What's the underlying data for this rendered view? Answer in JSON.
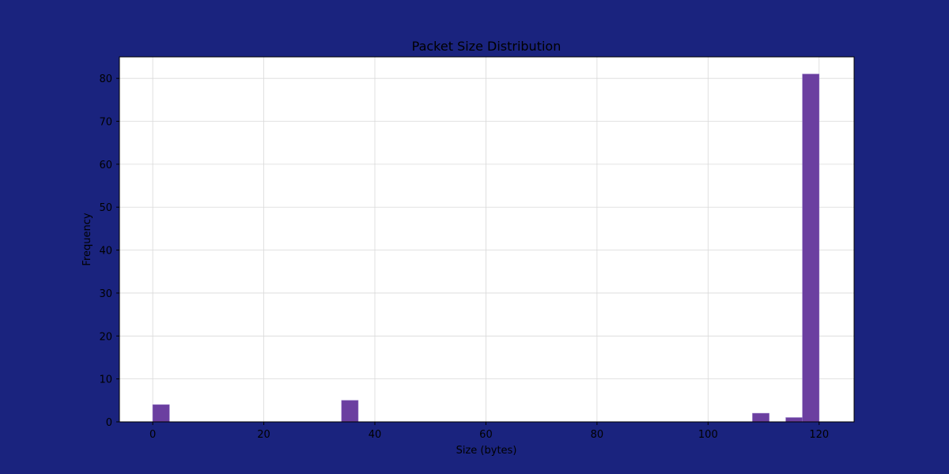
{
  "colors": {
    "figure_background": "#1a237e",
    "plot_background": "#ffffff",
    "bar_fill": "#6b3fa0",
    "bar_edge": "#8a6bbf",
    "grid": "#d9d9d9"
  },
  "chart_data": {
    "type": "bar",
    "title": "Packet Size Distribution",
    "xlabel": "Size (bytes)",
    "ylabel": "Frequency",
    "xlim": [
      -6,
      126.3
    ],
    "ylim": [
      0,
      85
    ],
    "grid": true,
    "xticks": [
      0,
      20,
      40,
      60,
      80,
      100,
      120
    ],
    "yticks": [
      0,
      10,
      20,
      30,
      40,
      50,
      60,
      70,
      80
    ],
    "bin_width": 3,
    "bins": [
      {
        "start": 0,
        "end": 3,
        "count": 4
      },
      {
        "start": 34,
        "end": 37,
        "count": 5
      },
      {
        "start": 108,
        "end": 111,
        "count": 2
      },
      {
        "start": 114,
        "end": 117,
        "count": 1
      },
      {
        "start": 117,
        "end": 120,
        "count": 81
      }
    ]
  }
}
